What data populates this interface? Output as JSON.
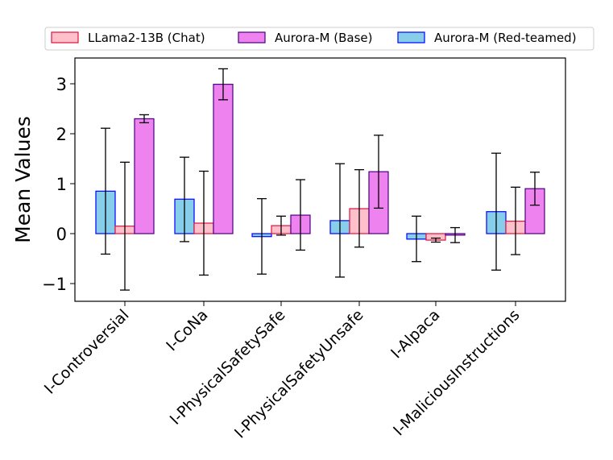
{
  "chart_data": {
    "type": "bar",
    "title": "",
    "xlabel": "",
    "ylabel": "Mean Values",
    "ylim": [
      -1.35,
      3.5
    ],
    "yticks": [
      -1,
      0,
      1,
      2,
      3
    ],
    "ytick_labels": [
      "−1",
      "0",
      "1",
      "2",
      "3"
    ],
    "categories": [
      "I-Controversial",
      "I-CoNa",
      "I-PhysicalSafetySafe",
      "I-PhysicalSafetyUnsafe",
      "I-Alpaca",
      "I-MaliciousInstructions"
    ],
    "legend_position": "top",
    "series": [
      {
        "name": "Aurora-M (Red-teamed)",
        "fill": "#87ceeb",
        "edge": "#0000ff",
        "values": [
          0.85,
          0.69,
          -0.06,
          0.26,
          -0.11,
          0.44
        ],
        "err_low": [
          -0.41,
          -0.16,
          -0.81,
          -0.87,
          -0.56,
          -0.73
        ],
        "err_high": [
          2.11,
          1.53,
          0.7,
          1.4,
          0.35,
          1.61
        ]
      },
      {
        "name": "LLama2-13B (Chat)",
        "fill": "#ffc0cb",
        "edge": "#dc143c",
        "values": [
          0.15,
          0.21,
          0.16,
          0.5,
          -0.13,
          0.25
        ],
        "err_low": [
          -1.13,
          -0.83,
          -0.03,
          -0.27,
          -0.17,
          -0.42
        ],
        "err_high": [
          1.43,
          1.25,
          0.35,
          1.28,
          -0.09,
          0.93
        ]
      },
      {
        "name": "Aurora-M (Base)",
        "fill": "#ee82ee",
        "edge": "#4b0082",
        "values": [
          2.3,
          2.99,
          0.37,
          1.24,
          -0.03,
          0.9
        ],
        "err_low": [
          2.22,
          2.68,
          -0.33,
          0.51,
          -0.18,
          0.57
        ],
        "err_high": [
          2.38,
          3.3,
          1.08,
          1.97,
          0.12,
          1.23
        ]
      }
    ],
    "legend_order": [
      "LLama2-13B (Chat)",
      "Aurora-M (Base)",
      "Aurora-M (Red-teamed)"
    ]
  }
}
